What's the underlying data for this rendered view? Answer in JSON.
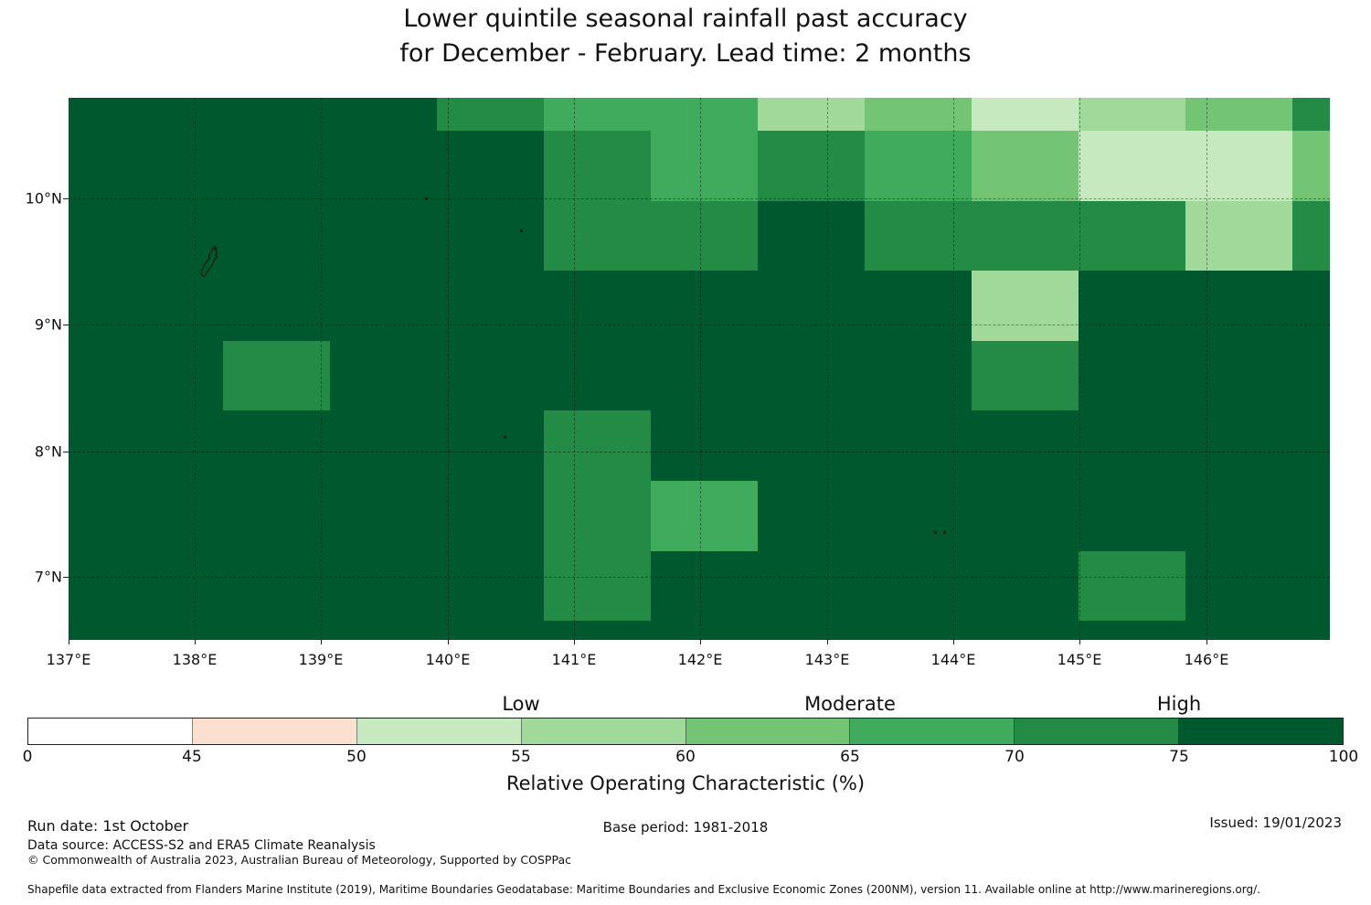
{
  "title": {
    "line1": "Lower quintile seasonal rainfall past accuracy",
    "line2": "for December - February. Lead time: 2 months"
  },
  "chart_data": {
    "type": "heatmap",
    "x_axis": {
      "tick_labels": [
        "137°E",
        "138°E",
        "139°E",
        "140°E",
        "141°E",
        "142°E",
        "143°E",
        "144°E",
        "145°E",
        "146°E"
      ],
      "range_deg_east": [
        137,
        147
      ]
    },
    "y_axis": {
      "tick_labels": [
        "10°N",
        "9°N",
        "8°N",
        "7°N"
      ],
      "range_deg_north": [
        6.5,
        10.8
      ]
    },
    "palette": [
      "#ffffff",
      "#fbe0d1",
      "#c7e9c0",
      "#a1d99b",
      "#74c476",
      "#41ab5d",
      "#238b45",
      "#00582f"
    ],
    "grid_bin_indices": [
      [
        7,
        7,
        7,
        7,
        6,
        5,
        5,
        3,
        4,
        2,
        3,
        4,
        6
      ],
      [
        7,
        7,
        7,
        7,
        7,
        6,
        5,
        6,
        5,
        4,
        2,
        2,
        4
      ],
      [
        7,
        7,
        7,
        7,
        7,
        6,
        6,
        7,
        6,
        6,
        6,
        3,
        6
      ],
      [
        7,
        7,
        7,
        7,
        7,
        7,
        7,
        7,
        7,
        3,
        7,
        7,
        7
      ],
      [
        7,
        7,
        6,
        7,
        7,
        7,
        7,
        7,
        7,
        6,
        7,
        7,
        7
      ],
      [
        7,
        7,
        7,
        7,
        7,
        6,
        7,
        7,
        7,
        7,
        7,
        7,
        7
      ],
      [
        7,
        7,
        7,
        7,
        7,
        6,
        5,
        7,
        7,
        7,
        7,
        7,
        7
      ],
      [
        7,
        7,
        7,
        7,
        7,
        6,
        7,
        7,
        7,
        7,
        6,
        7,
        7
      ],
      [
        7,
        7,
        7,
        7,
        7,
        7,
        7,
        7,
        7,
        7,
        7,
        7,
        7
      ]
    ],
    "colorbar": {
      "segment_colors": [
        "#ffffff",
        "#fbe0d1",
        "#c7e9c0",
        "#a1d99b",
        "#74c476",
        "#41ab5d",
        "#238b45",
        "#00582f"
      ],
      "tick_labels": [
        "0",
        "45",
        "50",
        "55",
        "60",
        "65",
        "70",
        "75",
        "100"
      ],
      "category_labels": [
        "Low",
        "Moderate",
        "High"
      ],
      "axis_label": "Relative Operating Characteristic (%)"
    }
  },
  "footer": {
    "run_date": "Run date: 1st October",
    "data_source": "Data source: ACCESS-S2 and ERA5 Climate Reanalysis",
    "copyright": "© Commonwealth of Australia 2023, Australian Bureau of Meteorology, Supported by COSPPac",
    "base_period": "Base period: 1981-2018",
    "issued": "Issued: 19/01/2023",
    "shapefile": "Shapefile data extracted from Flanders Marine Institute (2019), Maritime Boundaries Geodatabase: Maritime Boundaries and Exclusive Economic Zones (200NM), version 11. Available online at http://www.marineregions.org/."
  }
}
